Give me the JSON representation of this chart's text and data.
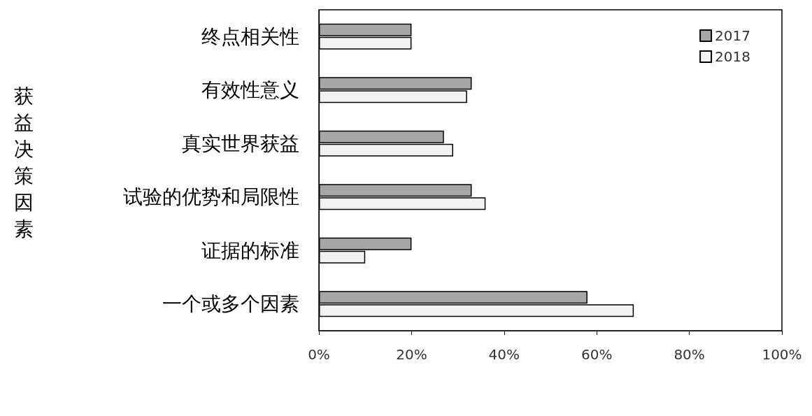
{
  "chart_data": {
    "type": "bar",
    "orientation": "horizontal",
    "ylabel": "获益决策因素",
    "categories": [
      "终点相关性",
      "有效性意义",
      "真实世界获益",
      "试验的优势和局限性",
      "证据的标准",
      "一个或多个因素"
    ],
    "series": [
      {
        "name": "2017",
        "color": "#a6a6a6",
        "values": [
          20,
          33,
          27,
          33,
          20,
          58
        ]
      },
      {
        "name": "2018",
        "color": "#f2f2f2",
        "values": [
          20,
          32,
          29,
          36,
          10,
          68
        ]
      }
    ],
    "xlim": [
      0,
      100
    ],
    "xticks": [
      {
        "value": 0,
        "label": "0%"
      },
      {
        "value": 20,
        "label": "20%"
      },
      {
        "value": 40,
        "label": "40%"
      },
      {
        "value": 60,
        "label": "60%"
      },
      {
        "value": 80,
        "label": "80%"
      },
      {
        "value": 100,
        "label": "100%"
      }
    ],
    "grid": false,
    "legend": "top right"
  }
}
